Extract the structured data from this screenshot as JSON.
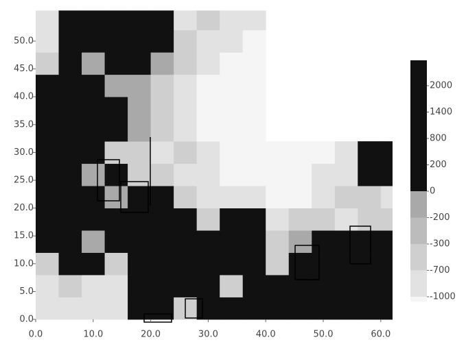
{
  "chart_data": {
    "type": "heatmap",
    "x_edges": [
      0,
      4,
      8,
      12,
      16,
      20,
      24,
      28,
      32,
      36,
      40,
      44,
      48,
      52,
      56,
      60,
      62
    ],
    "y_edges": [
      0,
      4,
      8,
      12,
      16,
      20,
      24,
      28,
      32,
      36,
      40,
      44,
      48,
      52,
      55.5
    ],
    "values": [
      [
        -850,
        -850,
        -850,
        -850,
        1000,
        1000,
        -500,
        1000,
        1000,
        1000,
        1000,
        1000,
        1000,
        1000,
        1000,
        1000
      ],
      [
        -850,
        -500,
        -850,
        -850,
        1000,
        1000,
        1000,
        1000,
        -500,
        1000,
        1000,
        1000,
        1000,
        1000,
        1000,
        1000
      ],
      [
        -500,
        1000,
        1000,
        -500,
        1000,
        1000,
        1000,
        1000,
        1000,
        1000,
        -500,
        1000,
        1000,
        1000,
        1000,
        1000
      ],
      [
        1000,
        1000,
        -100,
        1000,
        1000,
        1000,
        1000,
        1000,
        1000,
        1000,
        -500,
        -100,
        1000,
        1000,
        1000,
        1000
      ],
      [
        1000,
        1000,
        1000,
        1000,
        1000,
        1000,
        1000,
        -500,
        1000,
        1000,
        -850,
        -500,
        -500,
        -850,
        -500,
        -500
      ],
      [
        1000,
        1000,
        1000,
        -100,
        1000,
        1000,
        -500,
        -850,
        -850,
        -850,
        -1100,
        -1100,
        -850,
        -500,
        -500,
        -850
      ],
      [
        1000,
        1000,
        -100,
        1000,
        -500,
        -500,
        -850,
        -850,
        -1100,
        -1100,
        -1100,
        -1100,
        -850,
        -850,
        1000,
        1000
      ],
      [
        1000,
        1000,
        1000,
        -500,
        -500,
        -850,
        -500,
        -850,
        -1100,
        -1100,
        -1100,
        -1100,
        -1100,
        -850,
        1000,
        1000
      ],
      [
        1000,
        1000,
        1000,
        1000,
        -100,
        -500,
        -850,
        -1100,
        -1100,
        -1100,
        null,
        null,
        null,
        null,
        null,
        null
      ],
      [
        1000,
        1000,
        1000,
        1000,
        -100,
        -500,
        -850,
        -1100,
        -1100,
        -1100,
        null,
        null,
        null,
        null,
        null,
        null
      ],
      [
        1000,
        1000,
        1000,
        -100,
        -100,
        -500,
        -850,
        -1100,
        -1100,
        -1100,
        null,
        null,
        null,
        null,
        null,
        null
      ],
      [
        -500,
        1000,
        -100,
        1000,
        1000,
        -100,
        -500,
        -850,
        -1100,
        -1100,
        null,
        null,
        null,
        null,
        null,
        null
      ],
      [
        -850,
        1000,
        1000,
        1000,
        1000,
        1000,
        -500,
        -850,
        -850,
        -1100,
        null,
        null,
        null,
        null,
        null,
        null
      ],
      [
        -850,
        1000,
        1000,
        1000,
        1000,
        1000,
        -850,
        -500,
        -850,
        -850,
        null,
        null,
        null,
        null,
        null,
        null
      ]
    ],
    "xlim": [
      0,
      62
    ],
    "ylim": [
      0,
      55.5
    ],
    "xticks": [
      {
        "value": 0,
        "label": "0.0"
      },
      {
        "value": 10,
        "label": "10.0"
      },
      {
        "value": 20,
        "label": "20.0"
      },
      {
        "value": 30,
        "label": "30.0"
      },
      {
        "value": 40,
        "label": "40.0"
      },
      {
        "value": 50,
        "label": "50.0"
      },
      {
        "value": 60,
        "label": "60.0"
      }
    ],
    "yticks": [
      {
        "value": 0,
        "label": "0.0"
      },
      {
        "value": 5,
        "label": "5.0"
      },
      {
        "value": 10,
        "label": "10.0"
      },
      {
        "value": 15,
        "label": "15.0"
      },
      {
        "value": 20,
        "label": "20.0"
      },
      {
        "value": 25,
        "label": "25.0"
      },
      {
        "value": 30,
        "label": "30.0"
      },
      {
        "value": 35,
        "label": "35.0"
      },
      {
        "value": 40,
        "label": "40.0"
      },
      {
        "value": 45,
        "label": "45.0"
      },
      {
        "value": 50,
        "label": "50.0"
      }
    ],
    "colorbar": {
      "ticks": [
        2000,
        1400,
        800,
        200,
        0,
        -200,
        -300,
        -700,
        -1000
      ],
      "colors": [
        "#111111",
        "#111111",
        "#111111",
        "#111111",
        "#111111",
        "#a9a9a9",
        "#bcbcbc",
        "#cfcfcf",
        "#e2e2e2",
        "#f5f5f5"
      ]
    }
  }
}
